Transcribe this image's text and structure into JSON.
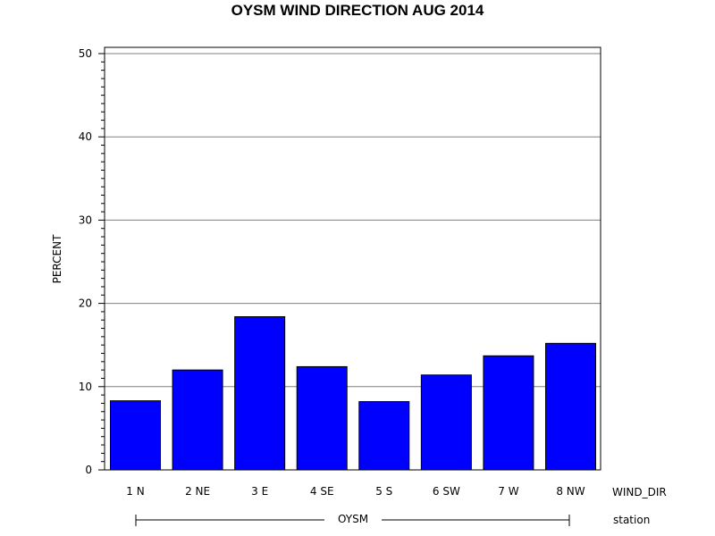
{
  "chart_data": {
    "type": "bar",
    "title": "OYSM WIND DIRECTION AUG 2014",
    "ylabel": "PERCENT",
    "xlabel": "WIND_DIR",
    "group_label": "OYSM",
    "group_axis_label": "station",
    "categories": [
      "1 N",
      "2 NE",
      "3 E",
      "4 SE",
      "5 S",
      "6 SW",
      "7 W",
      "8 NW"
    ],
    "values": [
      8.3,
      12.0,
      18.4,
      12.4,
      8.2,
      11.4,
      13.7,
      15.2
    ],
    "ylim": [
      0,
      50
    ],
    "yticks": [
      "0",
      "10",
      "20",
      "30",
      "40",
      "50"
    ],
    "grid": true,
    "bar_color": "#0000ff"
  }
}
